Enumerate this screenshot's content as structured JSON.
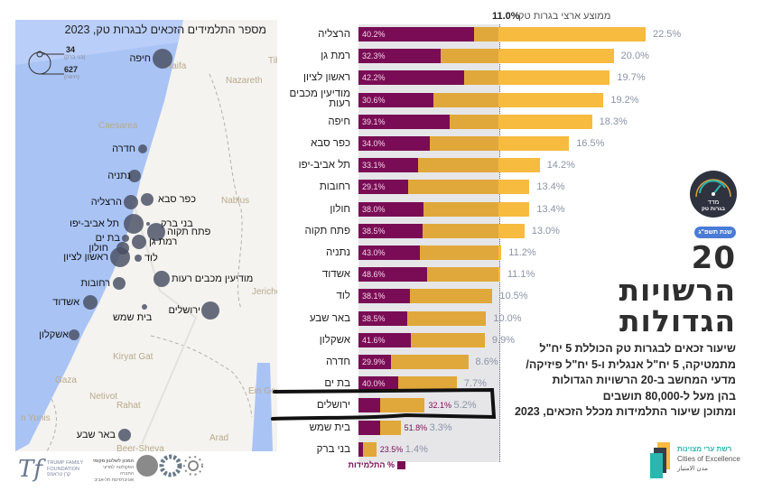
{
  "map": {
    "title": "מספר התלמידים הזכאים לבגרות טק, 2023",
    "legend": {
      "small_value": "34",
      "small_city": "(בני ברק)",
      "large_value": "627",
      "large_city": "(חיפה)"
    },
    "places": [
      "Nazareth",
      "Tib",
      "Nablus",
      "Jericho",
      "Caesarea",
      "Haifa",
      "Gaza",
      "Netivot",
      "Rahat",
      "n Yunis",
      "Arad",
      "Ein Gedi",
      "Kiryat Gat",
      "Beer-Sheva"
    ],
    "colors": {
      "sea": "#a9c3f5",
      "land": "#f4f3f0",
      "bubble": "#484e62"
    }
  },
  "chart_data": {
    "type": "bar",
    "header": "ממוצע ארצי בגרות טק",
    "reference_line": {
      "label": "11.0%",
      "value": 11.0
    },
    "categories": [
      "הרצליה",
      "רמת גן",
      "ראשון לציון",
      "מודיעין מכבים רעות",
      "חיפה",
      "כפר סבא",
      "תל אביב-יפו",
      "רחובות",
      "חולון",
      "פתח תקוה",
      "נתניה",
      "אשדוד",
      "לוד",
      "באר שבע",
      "אשקלון",
      "חדרה",
      "בת ים",
      "ירושלים",
      "בית שמש",
      "בני ברק"
    ],
    "series": [
      {
        "name": "שיעור זכאים לבגרות טק",
        "values": [
          22.5,
          20.0,
          19.7,
          19.2,
          18.3,
          16.5,
          14.2,
          13.4,
          13.4,
          13.0,
          11.2,
          11.1,
          10.5,
          10.0,
          9.9,
          8.6,
          7.7,
          5.2,
          3.3,
          1.4
        ]
      },
      {
        "name": "% התלמידות",
        "values": [
          40.2,
          32.3,
          42.2,
          30.6,
          39.1,
          34.0,
          33.1,
          29.1,
          38.0,
          38.5,
          43.0,
          48.6,
          38.1,
          38.5,
          41.6,
          29.9,
          40.0,
          32.1,
          51.8,
          23.5
        ]
      }
    ],
    "legend": "% התלמידות",
    "highlighted": "ירושלים",
    "xlim": [
      0,
      22.5
    ],
    "colors": {
      "female": "#7a0c55",
      "bar_below_avg": "#e0a83a",
      "bar_above_avg": "#f6bb3f",
      "background": "#e6e6e9"
    }
  },
  "map_cities": [
    {
      "name": "חיפה"
    },
    {
      "name": "חדרה"
    },
    {
      "name": "נתניה"
    },
    {
      "name": "הרצליה"
    },
    {
      "name": "כפר סבא"
    },
    {
      "name": "בני ברק"
    },
    {
      "name": "תל אביב-יפו"
    },
    {
      "name": "פתח תקוה"
    },
    {
      "name": "בת ים"
    },
    {
      "name": "רמת גן"
    },
    {
      "name": "חולון"
    },
    {
      "name": "ראשון לציון"
    },
    {
      "name": "לוד"
    },
    {
      "name": "רחובות"
    },
    {
      "name": "מודיעין מכבים רעות"
    },
    {
      "name": "אשדוד"
    },
    {
      "name": "בית שמש"
    },
    {
      "name": "ירושלים"
    },
    {
      "name": "אשקלון"
    },
    {
      "name": "באר שבע"
    }
  ],
  "side": {
    "badge_line1": "מדד",
    "badge_line2": "בגרות טק",
    "year_pill": "שנת תשפ\"ג",
    "title_number": "20",
    "title_line1": "הרשויות",
    "title_line2": "הגדולות",
    "paragraph": [
      "שיעור זכאים לבגרות טק הכוללת 5 יח\"ל",
      "מתמטיקה, 5 יח\"ל אנגלית ו-5 יח\"ל פיזיקה/",
      "מדעי המחשב ב-20 הרשויות הגדולות",
      "בהן מעל ל-80,000 תושבים",
      "ומתוכן שיעור התלמידות מכלל הזכאים, 2023"
    ],
    "logo": {
      "hebrew": "רשת ערי מצוינות",
      "english": "Cities of Excellence",
      "arabic": "مدن الامتياز"
    }
  },
  "footer": {
    "trump": {
      "line1": "TRUMP FAMILY",
      "line2": "FOUNDATION",
      "line3": "קרן טראמפ"
    },
    "institute": {
      "line1": "המכון לשלטון מקומי",
      "line2": "הפקולטה למדעי החברה",
      "line3": "אוניברסיטת תל-אביב"
    }
  }
}
